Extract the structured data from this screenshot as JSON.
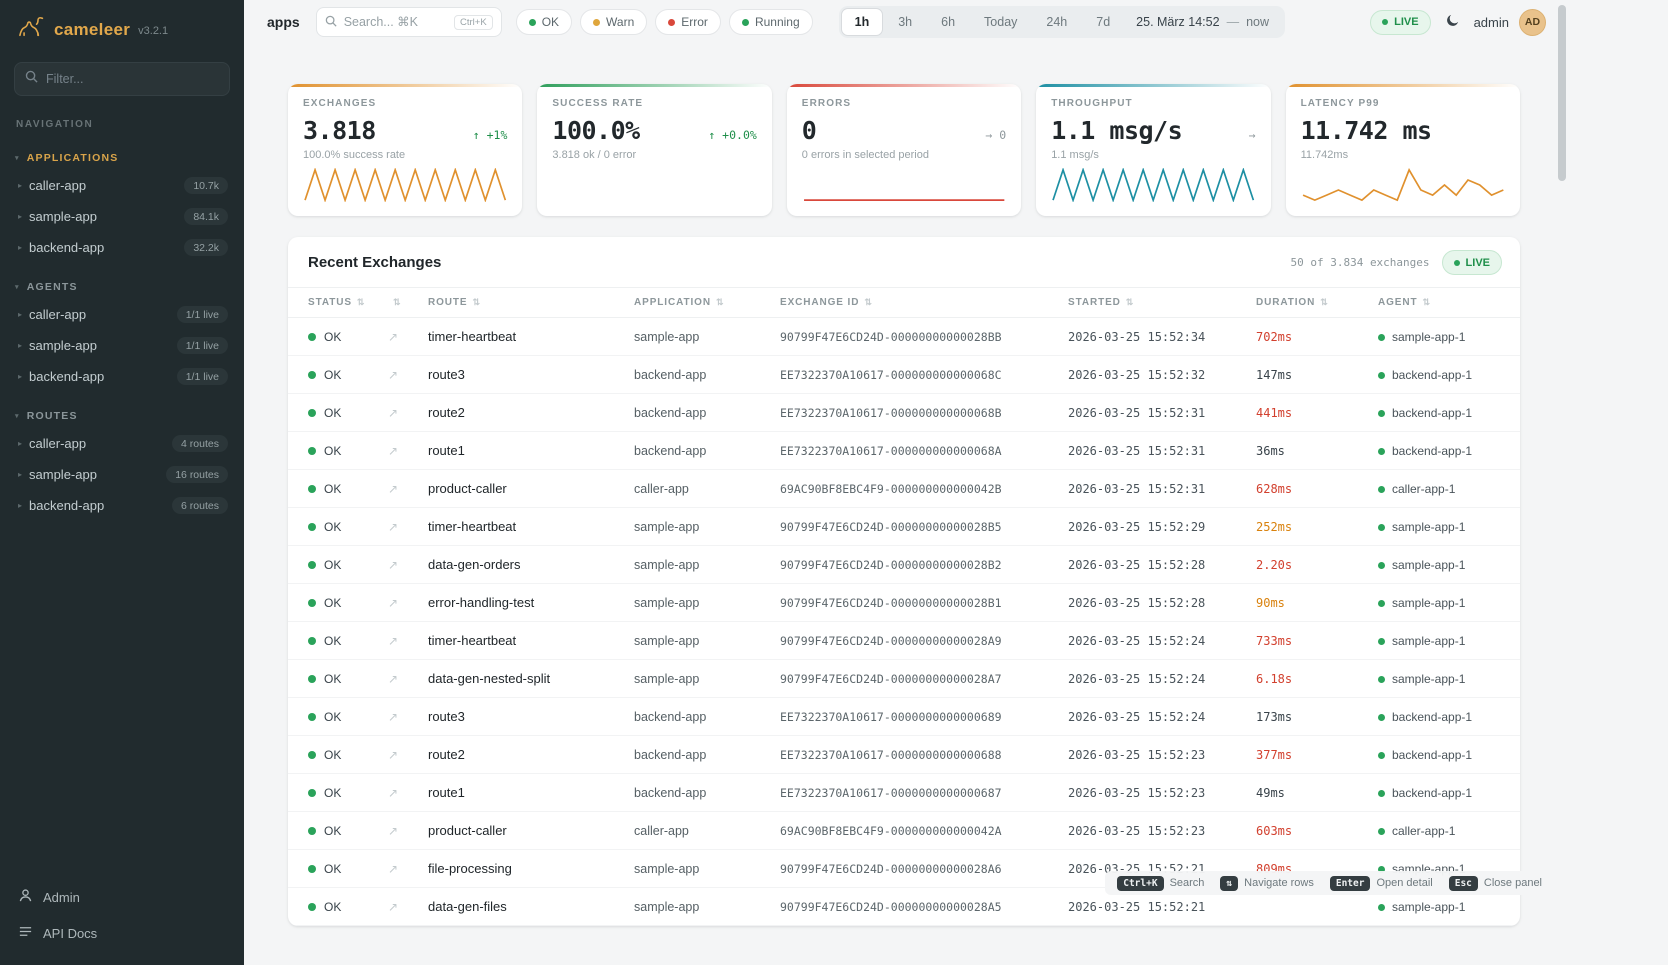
{
  "sidebar": {
    "logo_name": "cameleer",
    "logo_version": "v3.2.1",
    "filter_placeholder": "Filter...",
    "nav_label": "NAVIGATION",
    "sections": [
      {
        "label": "APPLICATIONS",
        "accent": true,
        "items": [
          {
            "label": "caller-app",
            "badge": "10.7k"
          },
          {
            "label": "sample-app",
            "badge": "84.1k"
          },
          {
            "label": "backend-app",
            "badge": "32.2k"
          }
        ]
      },
      {
        "label": "AGENTS",
        "accent": false,
        "items": [
          {
            "label": "caller-app",
            "badge": "1/1 live"
          },
          {
            "label": "sample-app",
            "badge": "1/1 live"
          },
          {
            "label": "backend-app",
            "badge": "1/1 live"
          }
        ]
      },
      {
        "label": "ROUTES",
        "accent": false,
        "items": [
          {
            "label": "caller-app",
            "badge": "4 routes"
          },
          {
            "label": "sample-app",
            "badge": "16 routes"
          },
          {
            "label": "backend-app",
            "badge": "6 routes"
          }
        ]
      }
    ],
    "footer": {
      "admin_label": "Admin",
      "docs_label": "API Docs"
    }
  },
  "header": {
    "page_title": "apps",
    "search_placeholder": "Search... ⌘K",
    "search_shortcut": "Ctrl+K",
    "chips": [
      {
        "label": "OK",
        "color": "#2aa35a"
      },
      {
        "label": "Warn",
        "color": "#dfa63c"
      },
      {
        "label": "Error",
        "color": "#d9483b"
      },
      {
        "label": "Running",
        "color": "#2aa35a"
      }
    ],
    "ranges": [
      "1h",
      "3h",
      "6h",
      "Today",
      "24h",
      "7d"
    ],
    "active_range": "1h",
    "date_label": "25. März 14:52",
    "date_separator": "—",
    "date_suffix": "now",
    "live_label": "LIVE",
    "user_name": "admin",
    "avatar_initials": "AD"
  },
  "cards": [
    {
      "label": "EXCHANGES",
      "value": "3.818",
      "delta": "↑ +1%",
      "delta_color": "#1f8f4a",
      "sub": "100.0% success rate",
      "accent": "#e0912e",
      "spark_color": "#e0912e",
      "spark": [
        1,
        8,
        1,
        8,
        1,
        8,
        1,
        8,
        1,
        8,
        1,
        8,
        1,
        8,
        1,
        8,
        1,
        8,
        1,
        8,
        1
      ]
    },
    {
      "label": "SUCCESS RATE",
      "value": "100.0%",
      "delta": "↑ +0.0%",
      "delta_color": "#1f8f4a",
      "sub": "3.818 ok / 0 error",
      "accent": "#2e9e5b",
      "spark_color": "#2e9e5b",
      "spark": []
    },
    {
      "label": "ERRORS",
      "value": "0",
      "delta": "→ 0",
      "delta_color": "#8d979b",
      "sub": "0 errors in selected period",
      "accent": "#d9483b",
      "spark_color": "#d9483b",
      "spark": [
        0,
        0
      ]
    },
    {
      "label": "THROUGHPUT",
      "value": "1.1 msg/s",
      "delta": "→",
      "delta_color": "#8d979b",
      "sub": "1.1 msg/s",
      "accent": "#1d8fa3",
      "spark_color": "#1d8fa3",
      "spark": [
        1,
        8,
        1,
        8,
        1,
        8,
        1,
        8,
        1,
        8,
        1,
        8,
        1,
        8,
        1,
        8,
        1,
        8,
        1,
        8,
        1
      ]
    },
    {
      "label": "LATENCY P99",
      "value": "11.742 ms",
      "delta": "",
      "delta_color": "#8d979b",
      "sub": "11.742ms",
      "accent": "#e0912e",
      "spark_color": "#e0912e",
      "spark": [
        3,
        2,
        3,
        4,
        3,
        2,
        4,
        3,
        2,
        8,
        4,
        3,
        5,
        3,
        6,
        5,
        3,
        4
      ]
    }
  ],
  "table": {
    "title": "Recent Exchanges",
    "meta": "50 of 3.834 exchanges",
    "live_label": "LIVE",
    "columns": [
      "STATUS",
      "",
      "ROUTE",
      "APPLICATION",
      "EXCHANGE ID",
      "STARTED",
      "DURATION",
      "AGENT"
    ],
    "rows": [
      {
        "status": "OK",
        "route": "timer-heartbeat",
        "app": "sample-app",
        "exchange_id": "90799F47E6CD24D-00000000000028BB",
        "started": "2026-03-25 15:52:34",
        "duration": "702ms",
        "duration_color": "red",
        "agent": "sample-app-1"
      },
      {
        "status": "OK",
        "route": "route3",
        "app": "backend-app",
        "exchange_id": "EE7322370A10617-000000000000068C",
        "started": "2026-03-25 15:52:32",
        "duration": "147ms",
        "duration_color": "default",
        "agent": "backend-app-1"
      },
      {
        "status": "OK",
        "route": "route2",
        "app": "backend-app",
        "exchange_id": "EE7322370A10617-000000000000068B",
        "started": "2026-03-25 15:52:31",
        "duration": "441ms",
        "duration_color": "red",
        "agent": "backend-app-1"
      },
      {
        "status": "OK",
        "route": "route1",
        "app": "backend-app",
        "exchange_id": "EE7322370A10617-000000000000068A",
        "started": "2026-03-25 15:52:31",
        "duration": "36ms",
        "duration_color": "default",
        "agent": "backend-app-1"
      },
      {
        "status": "OK",
        "route": "product-caller",
        "app": "caller-app",
        "exchange_id": "69AC90BF8EBC4F9-000000000000042B",
        "started": "2026-03-25 15:52:31",
        "duration": "628ms",
        "duration_color": "red",
        "agent": "caller-app-1"
      },
      {
        "status": "OK",
        "route": "timer-heartbeat",
        "app": "sample-app",
        "exchange_id": "90799F47E6CD24D-00000000000028B5",
        "started": "2026-03-25 15:52:29",
        "duration": "252ms",
        "duration_color": "amber",
        "agent": "sample-app-1"
      },
      {
        "status": "OK",
        "route": "data-gen-orders",
        "app": "sample-app",
        "exchange_id": "90799F47E6CD24D-00000000000028B2",
        "started": "2026-03-25 15:52:28",
        "duration": "2.20s",
        "duration_color": "red",
        "agent": "sample-app-1"
      },
      {
        "status": "OK",
        "route": "error-handling-test",
        "app": "sample-app",
        "exchange_id": "90799F47E6CD24D-00000000000028B1",
        "started": "2026-03-25 15:52:28",
        "duration": "90ms",
        "duration_color": "amber",
        "agent": "sample-app-1"
      },
      {
        "status": "OK",
        "route": "timer-heartbeat",
        "app": "sample-app",
        "exchange_id": "90799F47E6CD24D-00000000000028A9",
        "started": "2026-03-25 15:52:24",
        "duration": "733ms",
        "duration_color": "red",
        "agent": "sample-app-1"
      },
      {
        "status": "OK",
        "route": "data-gen-nested-split",
        "app": "sample-app",
        "exchange_id": "90799F47E6CD24D-00000000000028A7",
        "started": "2026-03-25 15:52:24",
        "duration": "6.18s",
        "duration_color": "red",
        "agent": "sample-app-1"
      },
      {
        "status": "OK",
        "route": "route3",
        "app": "backend-app",
        "exchange_id": "EE7322370A10617-0000000000000689",
        "started": "2026-03-25 15:52:24",
        "duration": "173ms",
        "duration_color": "default",
        "agent": "backend-app-1"
      },
      {
        "status": "OK",
        "route": "route2",
        "app": "backend-app",
        "exchange_id": "EE7322370A10617-0000000000000688",
        "started": "2026-03-25 15:52:23",
        "duration": "377ms",
        "duration_color": "red",
        "agent": "backend-app-1"
      },
      {
        "status": "OK",
        "route": "route1",
        "app": "backend-app",
        "exchange_id": "EE7322370A10617-0000000000000687",
        "started": "2026-03-25 15:52:23",
        "duration": "49ms",
        "duration_color": "default",
        "agent": "backend-app-1"
      },
      {
        "status": "OK",
        "route": "product-caller",
        "app": "caller-app",
        "exchange_id": "69AC90BF8EBC4F9-000000000000042A",
        "started": "2026-03-25 15:52:23",
        "duration": "603ms",
        "duration_color": "red",
        "agent": "caller-app-1"
      },
      {
        "status": "OK",
        "route": "file-processing",
        "app": "sample-app",
        "exchange_id": "90799F47E6CD24D-00000000000028A6",
        "started": "2026-03-25 15:52:21",
        "duration": "809ms",
        "duration_color": "red",
        "agent": "sample-app-1"
      },
      {
        "status": "OK",
        "route": "data-gen-files",
        "app": "sample-app",
        "exchange_id": "90799F47E6CD24D-00000000000028A5",
        "started": "2026-03-25 15:52:21",
        "duration": "",
        "duration_color": "default",
        "agent": "sample-app-1"
      }
    ]
  },
  "hints": [
    {
      "key": "Ctrl+K",
      "label": "Search"
    },
    {
      "key": "⇅",
      "label": "Navigate rows"
    },
    {
      "key": "Enter",
      "label": "Open detail"
    },
    {
      "key": "Esc",
      "label": "Close panel"
    }
  ],
  "icons": {
    "sort": "⇅",
    "open_detail": "↗",
    "section_caret": "▾",
    "item_chevron": "▸"
  }
}
